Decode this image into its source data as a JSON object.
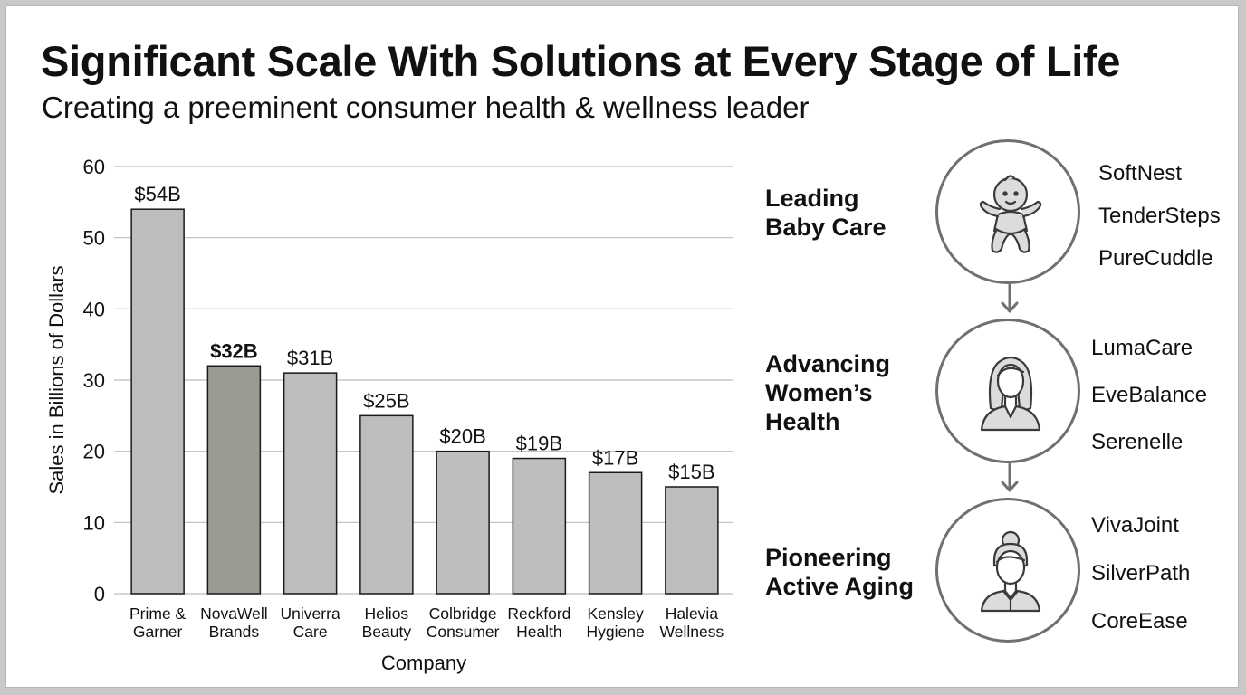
{
  "title": "Significant Scale With Solutions at Every Stage of Life",
  "subtitle": "Creating a preeminent consumer health & wellness leader",
  "chart_data": {
    "type": "bar",
    "title": "",
    "xlabel": "Company",
    "ylabel": "Sales in Billions of Dollars",
    "ylim": [
      0,
      60
    ],
    "yticks": [
      0,
      10,
      20,
      30,
      40,
      50,
      60
    ],
    "grid": true,
    "categories": [
      [
        "Prime &",
        "Garner"
      ],
      [
        "NovaWell",
        "Brands"
      ],
      [
        "Univerra",
        "Care"
      ],
      [
        "Helios",
        "Beauty"
      ],
      [
        "Colbridge",
        "Consumer"
      ],
      [
        "Reckford",
        "Health"
      ],
      [
        "Kensley",
        "Hygiene"
      ],
      [
        "Halevia",
        "Wellness"
      ]
    ],
    "values": [
      54,
      32,
      31,
      25,
      20,
      19,
      17,
      15
    ],
    "data_labels": [
      "$54B",
      "$32B",
      "$31B",
      "$25B",
      "$20B",
      "$19B",
      "$17B",
      "$15B"
    ],
    "highlight_index": 1,
    "colors": {
      "bar": "#bdbdbd",
      "highlight": "#9b9a91",
      "grid": "#bdbdbd",
      "border": "#1a1a1a"
    }
  },
  "stages": [
    {
      "label_lines": [
        "Leading",
        "Baby Care"
      ],
      "icon": "baby-icon",
      "brands": [
        "SoftNest",
        "TenderSteps",
        "PureCuddle"
      ]
    },
    {
      "label_lines": [
        "Advancing",
        "Women’s",
        "Health"
      ],
      "icon": "woman-icon",
      "brands": [
        "LumaCare",
        "EveBalance",
        "Serenelle"
      ]
    },
    {
      "label_lines": [
        "Pioneering",
        "Active Aging"
      ],
      "icon": "elderly-woman-icon",
      "brands": [
        "VivaJoint",
        "SilverPath",
        "CoreEase"
      ]
    }
  ]
}
